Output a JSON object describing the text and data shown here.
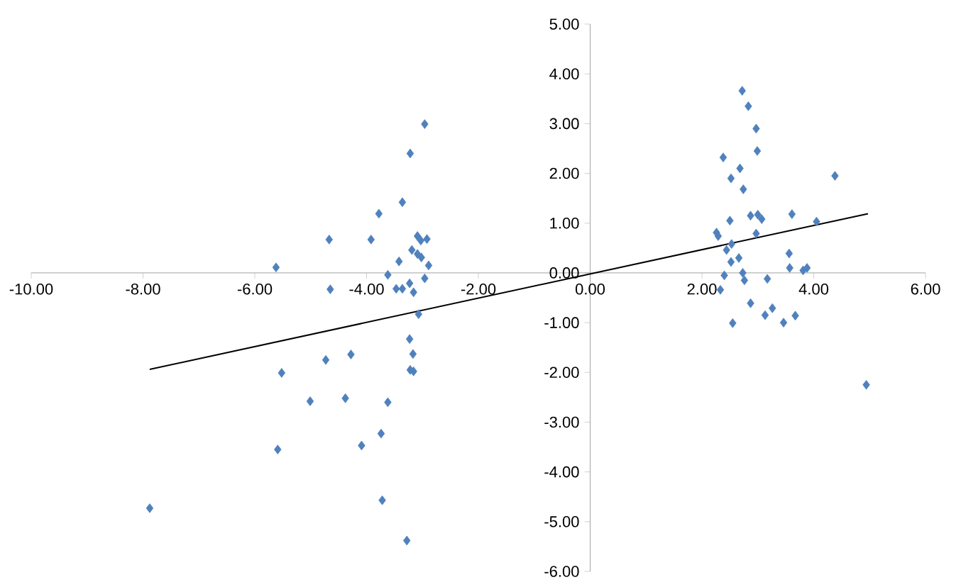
{
  "chart_data": {
    "type": "scatter",
    "xlim": [
      -10,
      6
    ],
    "ylim": [
      -6,
      5
    ],
    "xticks": [
      {
        "value": -10,
        "label": "-10.00"
      },
      {
        "value": -8,
        "label": "-8.00"
      },
      {
        "value": -6,
        "label": "-6.00"
      },
      {
        "value": -4,
        "label": "-4.00"
      },
      {
        "value": -2,
        "label": "-2.00"
      },
      {
        "value": 0,
        "label": "0.00"
      },
      {
        "value": 2,
        "label": "2.00"
      },
      {
        "value": 4,
        "label": "4.00"
      },
      {
        "value": 6,
        "label": "6.00"
      }
    ],
    "yticks": [
      {
        "value": -6,
        "label": "-6.00"
      },
      {
        "value": -5,
        "label": "-5.00"
      },
      {
        "value": -4,
        "label": "-4.00"
      },
      {
        "value": -3,
        "label": "-3.00"
      },
      {
        "value": -2,
        "label": "-2.00"
      },
      {
        "value": -1,
        "label": "-1.00"
      },
      {
        "value": 0,
        "label": "0.00"
      },
      {
        "value": 1,
        "label": "1.00"
      },
      {
        "value": 2,
        "label": "2.00"
      },
      {
        "value": 3,
        "label": "3.00"
      },
      {
        "value": 4,
        "label": "4.00"
      },
      {
        "value": 5,
        "label": "5.00"
      }
    ],
    "grid": false,
    "series": [
      {
        "marker": "diamond",
        "color": "#4f81bd",
        "x": [
          -2.96,
          -3.22,
          -3.36,
          -3.78,
          -4.67,
          -3.92,
          -3.09,
          -2.92,
          -3.03,
          -3.19,
          -3.09,
          -3.02,
          -2.89,
          -3.42,
          -5.62,
          -3.62,
          -2.96,
          -4.65,
          -3.47,
          -3.36,
          -3.23,
          -3.16,
          -3.07,
          -3.23,
          -3.17,
          -3.22,
          -3.16,
          -5.52,
          -4.73,
          -4.28,
          -5.01,
          -4.38,
          -3.62,
          -3.74,
          -4.09,
          -5.59,
          -3.72,
          -3.28,
          -7.88,
          2.72,
          2.83,
          2.97,
          2.99,
          2.38,
          2.68,
          2.52,
          2.74,
          4.38,
          3.61,
          4.05,
          2.87,
          3.0,
          3.07,
          2.5,
          2.26,
          2.29,
          2.97,
          2.53,
          2.44,
          2.66,
          2.52,
          3.56,
          3.57,
          3.81,
          3.88,
          2.4,
          2.73,
          2.76,
          3.17,
          2.33,
          2.87,
          3.26,
          3.13,
          2.55,
          3.46,
          3.67,
          4.94
        ],
        "values": [
          2.99,
          2.4,
          1.42,
          1.19,
          0.67,
          0.67,
          0.74,
          0.68,
          0.65,
          0.46,
          0.38,
          0.31,
          0.15,
          0.23,
          0.11,
          -0.04,
          -0.11,
          -0.33,
          -0.32,
          -0.32,
          -0.21,
          -0.39,
          -0.83,
          -1.33,
          -1.63,
          -1.95,
          -1.98,
          -2.01,
          -1.75,
          -1.64,
          -2.58,
          -2.52,
          -2.6,
          -3.23,
          -3.47,
          -3.55,
          -4.57,
          -5.38,
          -4.73,
          3.66,
          3.35,
          2.9,
          2.45,
          2.32,
          2.1,
          1.9,
          1.68,
          1.95,
          1.18,
          1.03,
          1.15,
          1.17,
          1.08,
          1.05,
          0.81,
          0.74,
          0.79,
          0.58,
          0.46,
          0.3,
          0.22,
          0.39,
          0.1,
          0.05,
          0.1,
          -0.05,
          0.0,
          -0.15,
          -0.12,
          -0.34,
          -0.61,
          -0.71,
          -0.85,
          -1.01,
          -1.0,
          -0.86,
          -2.25
        ]
      },
      {
        "type": "line",
        "marker": "none",
        "line_style": "solid",
        "color": "#000000",
        "x": [
          -7.88,
          4.97
        ],
        "values": [
          -1.94,
          1.19
        ]
      }
    ]
  }
}
